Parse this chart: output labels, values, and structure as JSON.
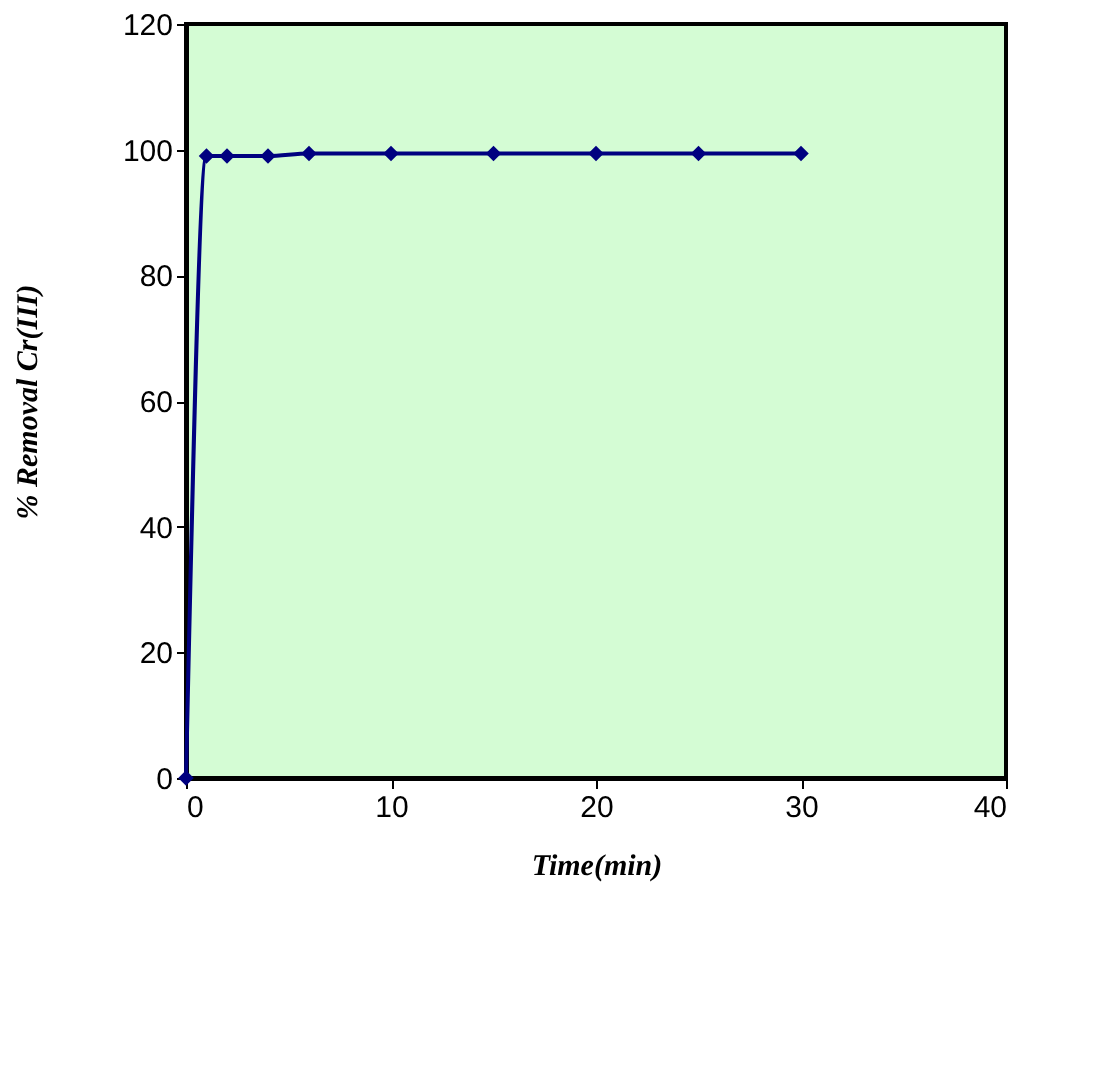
{
  "chart_data": {
    "type": "line",
    "xlabel": "Time(min)",
    "ylabel": "% Removal Cr(III)",
    "x": [
      0,
      1,
      2,
      4,
      6,
      10,
      15,
      20,
      25,
      30
    ],
    "series": [
      {
        "color": "#000080",
        "values": [
          0,
          99.0,
          99.0,
          99.0,
          99.4,
          99.4,
          99.4,
          99.4,
          99.4,
          99.4
        ]
      }
    ],
    "xlim": [
      0,
      40
    ],
    "xticks": [
      0,
      10,
      20,
      30,
      40
    ],
    "ylim": [
      0,
      120
    ],
    "yticks": [
      0,
      20,
      40,
      60,
      80,
      100,
      120
    ],
    "grid": false,
    "legend": false,
    "marker": "diamond",
    "line_style": "solid"
  }
}
